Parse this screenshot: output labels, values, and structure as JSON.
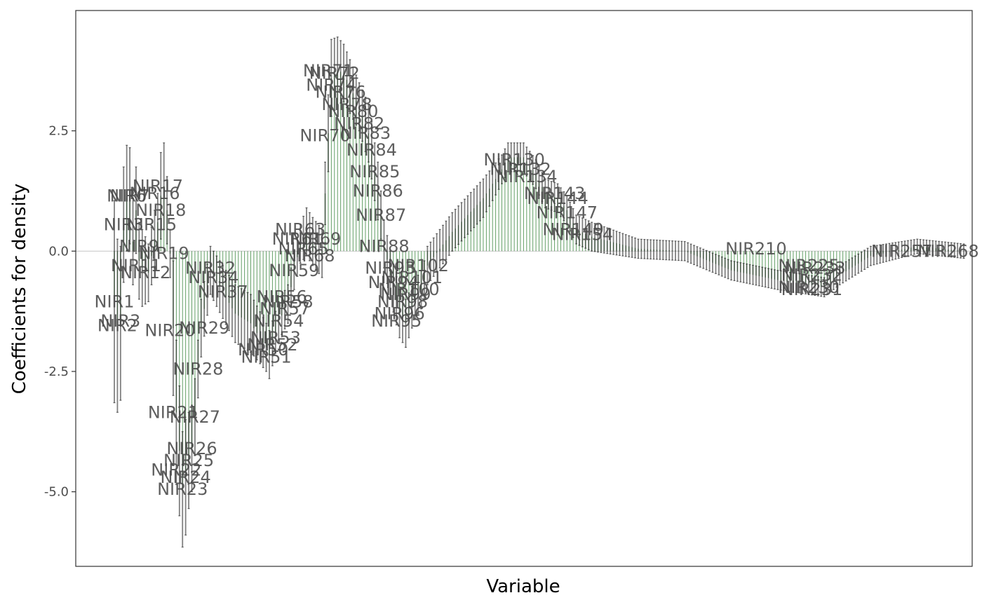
{
  "chart_data": {
    "type": "bar",
    "title": "",
    "xlabel": "Variable",
    "ylabel": "Coefficients for density",
    "ylim": [
      -6.55,
      5.0
    ],
    "y_ticks": [
      {
        "value": 2.5,
        "label": "2.5"
      },
      {
        "value": 0.0,
        "label": "0.0"
      },
      {
        "value": -2.5,
        "label": "-2.5"
      },
      {
        "value": -5.0,
        "label": "-5.0"
      }
    ],
    "x_ticks_shown": false,
    "grid": false,
    "legend": "none",
    "n_variables": 275,
    "label_prefix": "NIR",
    "series": [
      {
        "name": "coefficient",
        "anchors": [
          {
            "x": 1,
            "y": -1.05,
            "err": 2.1
          },
          {
            "x": 2,
            "y": -1.55,
            "err": 1.8
          },
          {
            "x": 3,
            "y": -1.5,
            "err": 1.6
          },
          {
            "x": 4,
            "y": 0.55,
            "err": 1.2
          },
          {
            "x": 5,
            "y": 1.1,
            "err": 1.1
          },
          {
            "x": 6,
            "y": 1.15,
            "err": 1.0
          },
          {
            "x": 7,
            "y": 0.2,
            "err": 0.9
          },
          {
            "x": 8,
            "y": 0.85,
            "err": 0.9
          },
          {
            "x": 9,
            "y": -0.2,
            "err": 0.8
          },
          {
            "x": 10,
            "y": -0.35,
            "err": 0.8
          },
          {
            "x": 12,
            "y": -0.45,
            "err": 0.6
          },
          {
            "x": 15,
            "y": 0.6,
            "err": 0.6
          },
          {
            "x": 16,
            "y": 1.15,
            "err": 0.9
          },
          {
            "x": 17,
            "y": 1.35,
            "err": 0.9
          },
          {
            "x": 18,
            "y": 0.85,
            "err": 0.7
          },
          {
            "x": 19,
            "y": -0.05,
            "err": 0.5
          },
          {
            "x": 20,
            "y": -1.6,
            "err": 1.4
          },
          {
            "x": 21,
            "y": -3.35,
            "err": 1.5
          },
          {
            "x": 23,
            "y": -4.95,
            "err": 1.2
          },
          {
            "x": 24,
            "y": -4.7,
            "err": 1.2
          },
          {
            "x": 25,
            "y": -4.35,
            "err": 1.0
          },
          {
            "x": 26,
            "y": -4.1,
            "err": 0.9
          },
          {
            "x": 27,
            "y": -3.45,
            "err": 0.8
          },
          {
            "x": 28,
            "y": -2.45,
            "err": 0.6
          },
          {
            "x": 29,
            "y": -1.6,
            "err": 0.6
          },
          {
            "x": 32,
            "y": -0.4,
            "err": 0.5
          },
          {
            "x": 40,
            "y": -1.3,
            "err": 0.6
          },
          {
            "x": 45,
            "y": -1.5,
            "err": 0.6
          },
          {
            "x": 50,
            "y": -2.0,
            "err": 0.5
          },
          {
            "x": 51,
            "y": -2.15,
            "err": 0.5
          },
          {
            "x": 54,
            "y": -1.45,
            "err": 0.4
          },
          {
            "x": 57,
            "y": -1.1,
            "err": 0.4
          },
          {
            "x": 59,
            "y": -0.4,
            "err": 0.4
          },
          {
            "x": 61,
            "y": 0.15,
            "err": 0.4
          },
          {
            "x": 63,
            "y": 0.4,
            "err": 0.5
          },
          {
            "x": 65,
            "y": 0.2,
            "err": 0.5
          },
          {
            "x": 68,
            "y": -0.05,
            "err": 0.5
          },
          {
            "x": 70,
            "y": 2.45,
            "err": 0.8
          },
          {
            "x": 71,
            "y": 3.6,
            "err": 0.8
          },
          {
            "x": 73,
            "y": 3.75,
            "err": 0.7
          },
          {
            "x": 75,
            "y": 3.7,
            "err": 0.6
          },
          {
            "x": 80,
            "y": 3.0,
            "err": 0.5
          },
          {
            "x": 83,
            "y": 2.45,
            "err": 0.6
          },
          {
            "x": 84,
            "y": 2.1,
            "err": 0.6
          },
          {
            "x": 85,
            "y": 1.65,
            "err": 0.6
          },
          {
            "x": 86,
            "y": 1.25,
            "err": 0.6
          },
          {
            "x": 87,
            "y": 0.75,
            "err": 0.5
          },
          {
            "x": 88,
            "y": 0.15,
            "err": 0.5
          },
          {
            "x": 90,
            "y": -0.5,
            "err": 0.5
          },
          {
            "x": 93,
            "y": -1.3,
            "err": 0.5
          },
          {
            "x": 95,
            "y": -1.5,
            "err": 0.5
          },
          {
            "x": 98,
            "y": -1.0,
            "err": 0.4
          },
          {
            "x": 100,
            "y": -0.8,
            "err": 0.4
          },
          {
            "x": 101,
            "y": -0.6,
            "err": 0.4
          },
          {
            "x": 102,
            "y": -0.3,
            "err": 0.4
          },
          {
            "x": 110,
            "y": 0.4,
            "err": 0.4
          },
          {
            "x": 120,
            "y": 1.1,
            "err": 0.4
          },
          {
            "x": 126,
            "y": 1.7,
            "err": 0.3
          },
          {
            "x": 128,
            "y": 1.95,
            "err": 0.3
          },
          {
            "x": 133,
            "y": 1.95,
            "err": 0.3
          },
          {
            "x": 137,
            "y": 1.6,
            "err": 0.3
          },
          {
            "x": 140,
            "y": 1.2,
            "err": 0.3
          },
          {
            "x": 144,
            "y": 1.1,
            "err": 0.3
          },
          {
            "x": 147,
            "y": 0.85,
            "err": 0.3
          },
          {
            "x": 150,
            "y": 0.45,
            "err": 0.3
          },
          {
            "x": 155,
            "y": 0.3,
            "err": 0.3
          },
          {
            "x": 170,
            "y": 0.05,
            "err": 0.2
          },
          {
            "x": 185,
            "y": 0.0,
            "err": 0.2
          },
          {
            "x": 200,
            "y": -0.4,
            "err": 0.2
          },
          {
            "x": 215,
            "y": -0.6,
            "err": 0.2
          },
          {
            "x": 230,
            "y": -0.75,
            "err": 0.2
          },
          {
            "x": 235,
            "y": -0.5,
            "err": 0.2
          },
          {
            "x": 245,
            "y": -0.1,
            "err": 0.2
          },
          {
            "x": 260,
            "y": 0.1,
            "err": 0.15
          },
          {
            "x": 275,
            "y": 0.0,
            "err": 0.15
          }
        ]
      }
    ],
    "annotations": [
      {
        "text": "NIR1",
        "x": 1,
        "y": -1.05
      },
      {
        "text": "NIR2",
        "x": 2,
        "y": -1.55
      },
      {
        "text": "NIR3",
        "x": 3,
        "y": -1.45
      },
      {
        "text": "NIR3",
        "x": 4,
        "y": 0.55
      },
      {
        "text": "NIR6",
        "x": 5,
        "y": 1.15
      },
      {
        "text": "NIR7",
        "x": 6,
        "y": 1.15
      },
      {
        "text": "NIR9",
        "x": 9,
        "y": 0.1
      },
      {
        "text": "NIR11",
        "x": 8,
        "y": -0.3
      },
      {
        "text": "NIR12",
        "x": 11,
        "y": -0.45
      },
      {
        "text": "NIR15",
        "x": 13,
        "y": 0.55
      },
      {
        "text": "NIR16",
        "x": 14,
        "y": 1.2
      },
      {
        "text": "NIR17",
        "x": 15,
        "y": 1.35
      },
      {
        "text": "NIR18",
        "x": 16,
        "y": 0.85
      },
      {
        "text": "NIR19",
        "x": 17,
        "y": -0.05
      },
      {
        "text": "NIR20",
        "x": 19,
        "y": -1.65
      },
      {
        "text": "NIR21",
        "x": 20,
        "y": -3.35
      },
      {
        "text": "NIR22",
        "x": 21,
        "y": -4.55
      },
      {
        "text": "NIR23",
        "x": 23,
        "y": -4.95
      },
      {
        "text": "NIR24",
        "x": 24,
        "y": -4.7
      },
      {
        "text": "NIR25",
        "x": 25,
        "y": -4.35
      },
      {
        "text": "NIR26",
        "x": 26,
        "y": -4.1
      },
      {
        "text": "NIR27",
        "x": 27,
        "y": -3.45
      },
      {
        "text": "NIR28",
        "x": 28,
        "y": -2.45
      },
      {
        "text": "NIR29",
        "x": 30,
        "y": -1.6
      },
      {
        "text": "NIR32",
        "x": 32,
        "y": -0.35
      },
      {
        "text": "NIR34",
        "x": 33,
        "y": -0.55
      },
      {
        "text": "NIR37",
        "x": 36,
        "y": -0.85
      },
      {
        "text": "NIR50",
        "x": 49,
        "y": -2.05
      },
      {
        "text": "NIR51",
        "x": 50,
        "y": -2.2
      },
      {
        "text": "NIR52",
        "x": 52,
        "y": -1.95
      },
      {
        "text": "NIR53",
        "x": 53,
        "y": -1.8
      },
      {
        "text": "NIR54",
        "x": 54,
        "y": -1.45
      },
      {
        "text": "NIR56",
        "x": 55,
        "y": -0.95
      },
      {
        "text": "NIR57",
        "x": 56,
        "y": -1.2
      },
      {
        "text": "NIR58",
        "x": 57,
        "y": -1.05
      },
      {
        "text": "NIR59",
        "x": 59,
        "y": -0.4
      },
      {
        "text": "NIR61",
        "x": 60,
        "y": 0.25
      },
      {
        "text": "NIR63",
        "x": 61,
        "y": 0.45
      },
      {
        "text": "NIR65",
        "x": 62,
        "y": 0.05
      },
      {
        "text": "NIR68",
        "x": 64,
        "y": -0.1
      },
      {
        "text": "NIR69",
        "x": 66,
        "y": 0.25
      },
      {
        "text": "NIR70",
        "x": 69,
        "y": 2.4
      },
      {
        "text": "NIR71",
        "x": 70,
        "y": 3.75
      },
      {
        "text": "NIR72",
        "x": 72,
        "y": 3.7
      },
      {
        "text": "NIR74",
        "x": 71,
        "y": 3.45
      },
      {
        "text": "NIR76",
        "x": 74,
        "y": 3.3
      },
      {
        "text": "NIR78",
        "x": 76,
        "y": 3.05
      },
      {
        "text": "NIR80",
        "x": 78,
        "y": 2.9
      },
      {
        "text": "NIR82",
        "x": 80,
        "y": 2.65
      },
      {
        "text": "NIR83",
        "x": 82,
        "y": 2.45
      },
      {
        "text": "NIR84",
        "x": 84,
        "y": 2.1
      },
      {
        "text": "NIR85",
        "x": 85,
        "y": 1.65
      },
      {
        "text": "NIR86",
        "x": 86,
        "y": 1.25
      },
      {
        "text": "NIR87",
        "x": 87,
        "y": 0.75
      },
      {
        "text": "NIR88",
        "x": 88,
        "y": 0.1
      },
      {
        "text": "NIR93",
        "x": 90,
        "y": -0.35
      },
      {
        "text": "NIR94",
        "x": 91,
        "y": -0.65
      },
      {
        "text": "NIR95",
        "x": 92,
        "y": -1.45
      },
      {
        "text": "NIR96",
        "x": 93,
        "y": -1.3
      },
      {
        "text": "NIR98",
        "x": 94,
        "y": -1.05
      },
      {
        "text": "NIR99",
        "x": 95,
        "y": -0.9
      },
      {
        "text": "NIR100",
        "x": 96,
        "y": -0.8
      },
      {
        "text": "NIR101",
        "x": 97,
        "y": -0.55
      },
      {
        "text": "NIR102",
        "x": 99,
        "y": -0.3
      },
      {
        "text": "NIR130",
        "x": 130,
        "y": 1.9
      },
      {
        "text": "NIR132",
        "x": 132,
        "y": 1.7
      },
      {
        "text": "NIR134",
        "x": 134,
        "y": 1.55
      },
      {
        "text": "NIR143",
        "x": 143,
        "y": 1.2
      },
      {
        "text": "NIR144",
        "x": 144,
        "y": 1.1
      },
      {
        "text": "NIR147",
        "x": 147,
        "y": 0.8
      },
      {
        "text": "NIR149",
        "x": 149,
        "y": 0.45
      },
      {
        "text": "NIR154",
        "x": 152,
        "y": 0.35
      },
      {
        "text": "NIR210",
        "x": 208,
        "y": 0.05
      },
      {
        "text": "NIR225",
        "x": 225,
        "y": -0.3
      },
      {
        "text": "NIR232",
        "x": 226,
        "y": -0.5
      },
      {
        "text": "NIR233",
        "x": 227,
        "y": -0.35
      },
      {
        "text": "NIR230",
        "x": 225,
        "y": -0.75
      },
      {
        "text": "NIR231",
        "x": 226,
        "y": -0.8
      },
      {
        "text": "NIR257",
        "x": 255,
        "y": 0.0
      },
      {
        "text": "NIR268",
        "x": 270,
        "y": 0.0
      }
    ],
    "colors": {
      "bar": "#2e7d32",
      "errorbar": "#1a1a1a",
      "zero_line": "#cccccc",
      "panel_border": "#333333",
      "label_text": "#4d4d4d"
    }
  }
}
